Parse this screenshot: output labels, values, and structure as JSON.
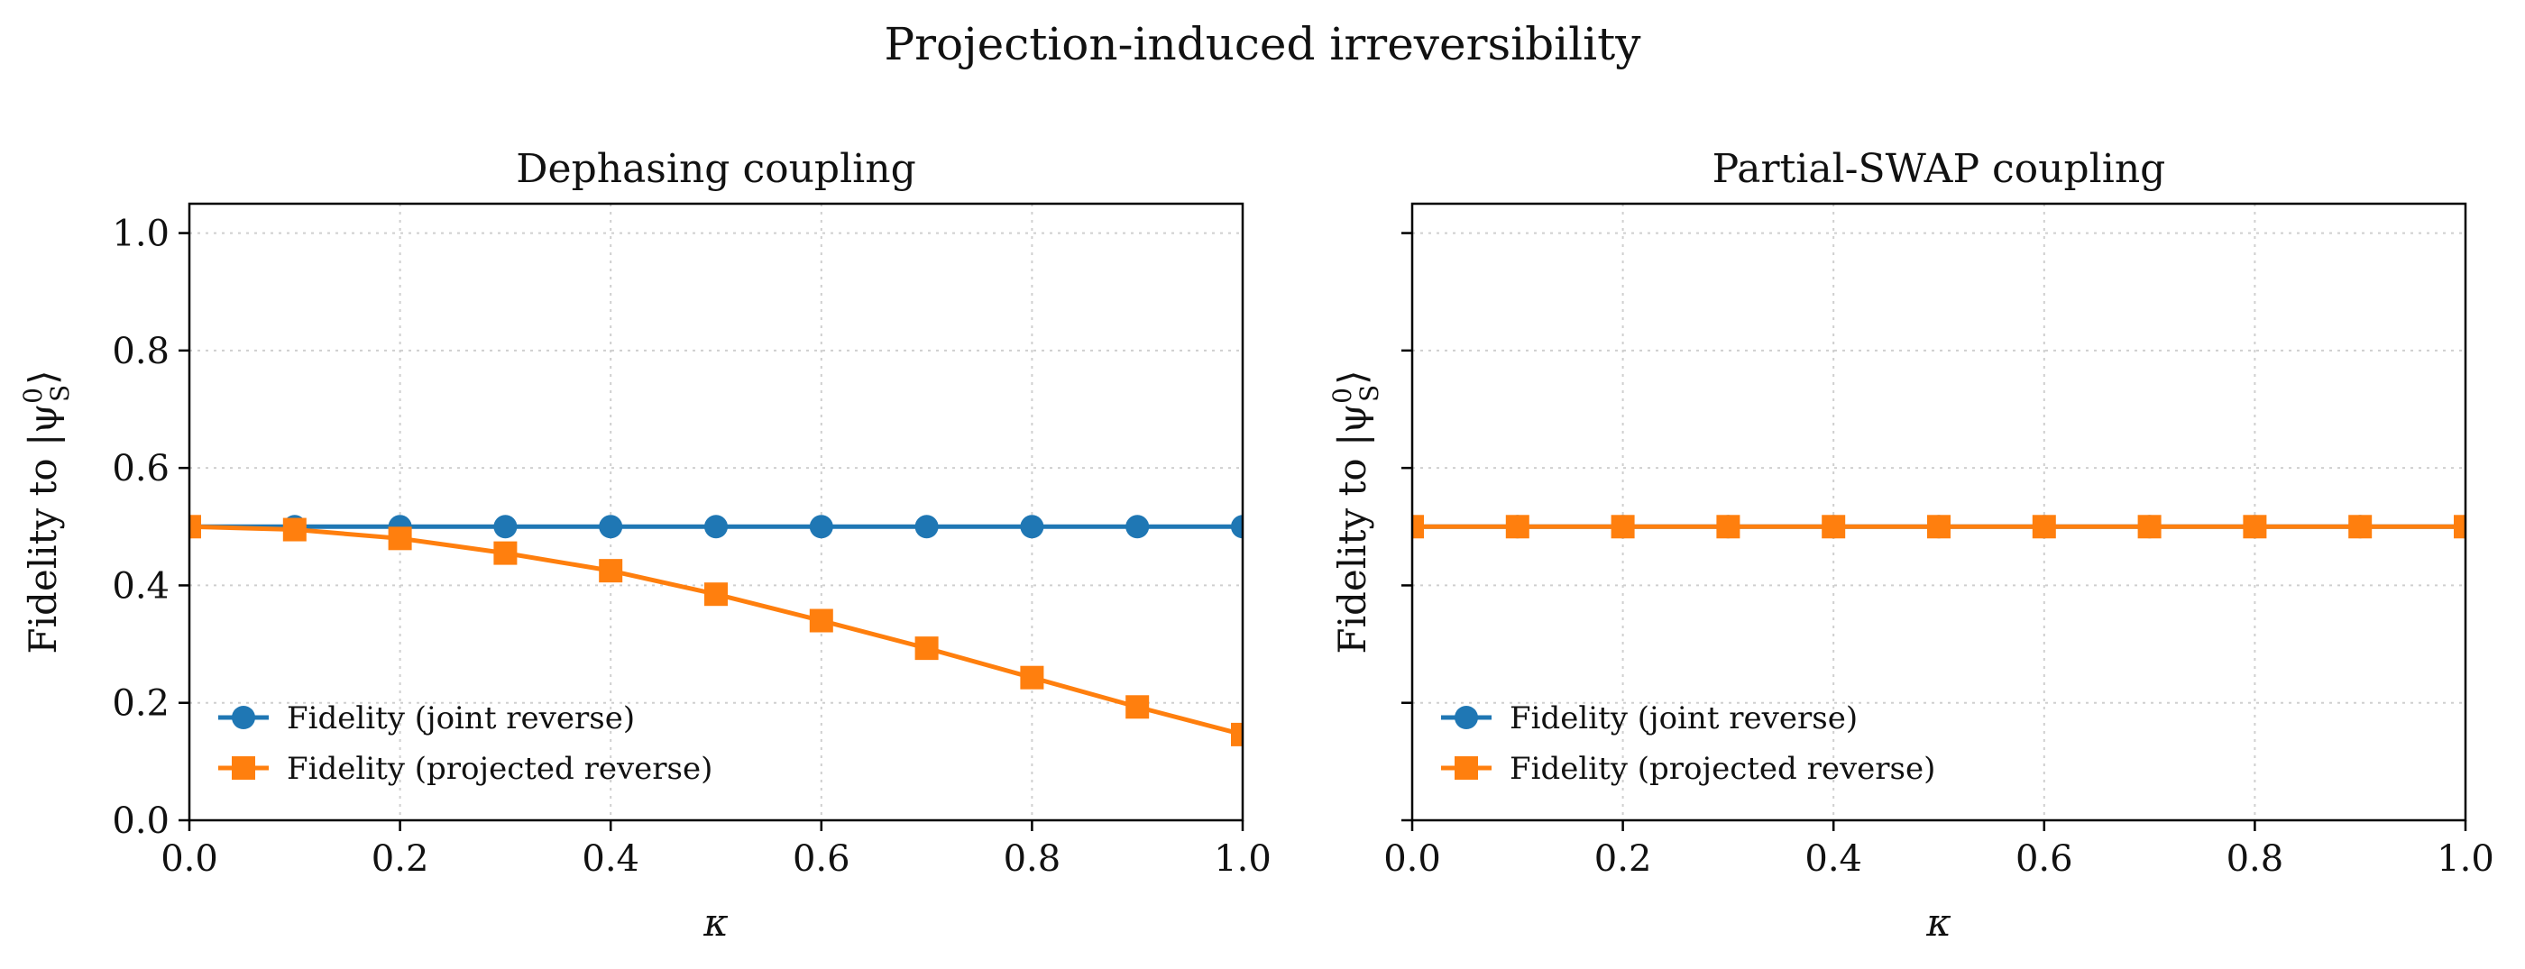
{
  "figure_title": "Projection-induced irreversibility",
  "colors": {
    "joint": "#1f77b4",
    "projected": "#ff7f0e",
    "grid": "#cfcfcf"
  },
  "chart_data": [
    {
      "type": "line",
      "title": "Dephasing coupling",
      "xlabel": "κ",
      "ylabel": "Fidelity to |ψ",
      "ylabel_sup": "0",
      "ylabel_sub": "S",
      "ylabel_close": "⟩",
      "xlim": [
        0.0,
        1.0
      ],
      "ylim": [
        0.0,
        1.05
      ],
      "xticks": [
        "0.0",
        "0.2",
        "0.4",
        "0.6",
        "0.8",
        "1.0"
      ],
      "yticks": [
        "0.0",
        "0.2",
        "0.4",
        "0.6",
        "0.8",
        "1.0"
      ],
      "show_ytick_labels": true,
      "grid": true,
      "legend_position": "lower-left",
      "x": [
        0.0,
        0.1,
        0.2,
        0.3,
        0.4,
        0.5,
        0.6,
        0.7,
        0.8,
        0.9,
        1.0
      ],
      "series": [
        {
          "name": "Fidelity (joint reverse)",
          "marker": "circle",
          "color": "#1f77b4",
          "values": [
            0.5,
            0.5,
            0.5,
            0.5,
            0.5,
            0.5,
            0.5,
            0.5,
            0.5,
            0.5,
            0.5
          ]
        },
        {
          "name": "Fidelity (projected reverse)",
          "marker": "square",
          "color": "#ff7f0e",
          "values": [
            0.5,
            0.495,
            0.48,
            0.455,
            0.425,
            0.385,
            0.34,
            0.293,
            0.243,
            0.193,
            0.146
          ]
        }
      ]
    },
    {
      "type": "line",
      "title": "Partial-SWAP coupling",
      "xlabel": "κ",
      "ylabel": "Fidelity to |ψ",
      "ylabel_sup": "0",
      "ylabel_sub": "S",
      "ylabel_close": "⟩",
      "xlim": [
        0.0,
        1.0
      ],
      "ylim": [
        0.0,
        1.05
      ],
      "xticks": [
        "0.0",
        "0.2",
        "0.4",
        "0.6",
        "0.8",
        "1.0"
      ],
      "yticks": [
        "0.0",
        "0.2",
        "0.4",
        "0.6",
        "0.8",
        "1.0"
      ],
      "show_ytick_labels": false,
      "grid": true,
      "legend_position": "lower-left",
      "x": [
        0.0,
        0.1,
        0.2,
        0.3,
        0.4,
        0.5,
        0.6,
        0.7,
        0.8,
        0.9,
        1.0
      ],
      "series": [
        {
          "name": "Fidelity (joint reverse)",
          "marker": "circle",
          "color": "#1f77b4",
          "values": [
            0.5,
            0.5,
            0.5,
            0.5,
            0.5,
            0.5,
            0.5,
            0.5,
            0.5,
            0.5,
            0.5
          ]
        },
        {
          "name": "Fidelity (projected reverse)",
          "marker": "square",
          "color": "#ff7f0e",
          "values": [
            0.5,
            0.5,
            0.5,
            0.5,
            0.5,
            0.5,
            0.5,
            0.5,
            0.5,
            0.5,
            0.5
          ]
        }
      ]
    }
  ]
}
